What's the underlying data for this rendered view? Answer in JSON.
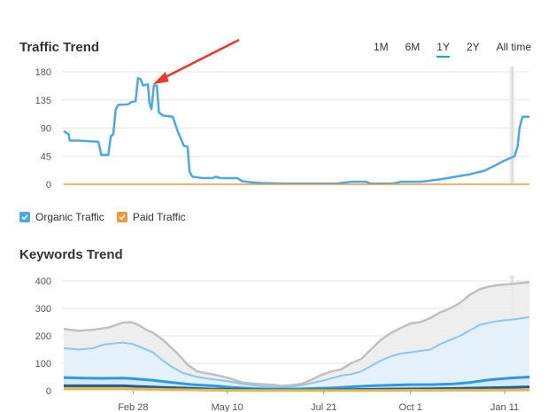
{
  "range_tabs": [
    "1M",
    "6M",
    "1Y",
    "2Y",
    "All time"
  ],
  "active_range": "1Y",
  "colors": {
    "organic": "#4aa8e8",
    "paid": "#f0983a",
    "arrow": "#e8392b",
    "grid": "#e6e6e6",
    "highlight": "#d6d6d6"
  },
  "legend": {
    "organic": "Organic Traffic",
    "paid": "Paid Traffic"
  },
  "chart_data": [
    {
      "type": "line",
      "title": "Traffic Trend",
      "xlabel": "",
      "ylabel": "",
      "ylim": [
        0,
        180
      ],
      "yticks": [
        0,
        45,
        90,
        135,
        180
      ],
      "grid": true,
      "series": [
        {
          "name": "Organic Traffic",
          "color": "#4aa8e8",
          "points": [
            [
              0,
              85
            ],
            [
              1,
              80
            ],
            [
              1.2,
              70
            ],
            [
              3,
              70
            ],
            [
              7,
              68
            ],
            [
              7.6,
              47
            ],
            [
              9,
              47
            ],
            [
              9.5,
              77
            ],
            [
              10,
              80
            ],
            [
              10.5,
              120
            ],
            [
              11,
              127
            ],
            [
              13,
              128
            ],
            [
              13.5,
              131
            ],
            [
              14.5,
              133
            ],
            [
              15,
              170
            ],
            [
              15.5,
              168
            ],
            [
              16,
              158
            ],
            [
              17,
              160
            ],
            [
              17.3,
              130
            ],
            [
              17.7,
              120
            ],
            [
              18.2,
              158
            ],
            [
              18.8,
              158
            ],
            [
              19.2,
              115
            ],
            [
              20,
              110
            ],
            [
              22,
              108
            ],
            [
              23,
              85
            ],
            [
              23.8,
              70
            ],
            [
              24.2,
              62
            ],
            [
              25,
              60
            ],
            [
              25.4,
              20
            ],
            [
              26,
              12
            ],
            [
              28,
              10
            ],
            [
              30,
              10
            ],
            [
              30.8,
              12
            ],
            [
              31.5,
              10
            ],
            [
              35,
              10
            ],
            [
              36,
              5
            ],
            [
              38,
              3
            ],
            [
              40,
              2
            ],
            [
              45,
              1
            ],
            [
              55,
              1
            ],
            [
              56,
              2
            ],
            [
              58,
              4
            ],
            [
              61,
              4
            ],
            [
              62,
              1
            ],
            [
              66,
              1
            ],
            [
              67,
              2
            ],
            [
              68,
              4
            ],
            [
              72,
              4
            ],
            [
              73,
              5
            ],
            [
              76,
              8
            ],
            [
              79,
              12
            ],
            [
              82,
              16
            ],
            [
              85,
              22
            ],
            [
              87,
              30
            ],
            [
              89,
              38
            ],
            [
              91,
              45
            ],
            [
              91.6,
              60
            ],
            [
              92,
              90
            ],
            [
              92.6,
              108
            ],
            [
              94,
              108
            ]
          ]
        },
        {
          "name": "Paid Traffic",
          "color": "#f0983a",
          "points": [
            [
              0,
              0
            ],
            [
              94,
              0
            ]
          ]
        }
      ],
      "highlight_x": 90.5,
      "annotation": {
        "type": "arrow",
        "target": [
          18,
          160
        ]
      }
    },
    {
      "type": "area",
      "title": "Keywords Trend",
      "xlabel": "",
      "ylabel": "",
      "ylim": [
        0,
        400
      ],
      "yticks": [
        0,
        100,
        200,
        300,
        400
      ],
      "xticks": [
        "Feb 28",
        "May 10",
        "Jul 21",
        "Oct 1",
        "Jan 11"
      ],
      "grid": true,
      "series": [
        {
          "color": "#c0c0c0",
          "fill": "#ececec",
          "points": [
            [
              0,
              225
            ],
            [
              3,
              218
            ],
            [
              6,
              222
            ],
            [
              9,
              230
            ],
            [
              12,
              248
            ],
            [
              13.5,
              250
            ],
            [
              15,
              240
            ],
            [
              17,
              218
            ],
            [
              18,
              212
            ],
            [
              20,
              185
            ],
            [
              23,
              135
            ],
            [
              25,
              95
            ],
            [
              27,
              70
            ],
            [
              30,
              60
            ],
            [
              33,
              48
            ],
            [
              36,
              30
            ],
            [
              39,
              25
            ],
            [
              42,
              22
            ],
            [
              44,
              18
            ],
            [
              46,
              20
            ],
            [
              48,
              25
            ],
            [
              50,
              40
            ],
            [
              52,
              58
            ],
            [
              54,
              70
            ],
            [
              56,
              78
            ],
            [
              58,
              100
            ],
            [
              60,
              115
            ],
            [
              62,
              150
            ],
            [
              64,
              185
            ],
            [
              66,
              210
            ],
            [
              68,
              228
            ],
            [
              70,
              245
            ],
            [
              72,
              250
            ],
            [
              74,
              265
            ],
            [
              76,
              285
            ],
            [
              78,
              300
            ],
            [
              80,
              320
            ],
            [
              82,
              350
            ],
            [
              84,
              370
            ],
            [
              86,
              380
            ],
            [
              88,
              385
            ],
            [
              90,
              388
            ],
            [
              92,
              392
            ],
            [
              94,
              395
            ]
          ]
        },
        {
          "color": "#8fc6ec",
          "fill": "#e2f0fb",
          "points": [
            [
              0,
              155
            ],
            [
              3,
              150
            ],
            [
              6,
              155
            ],
            [
              8,
              168
            ],
            [
              10,
              172
            ],
            [
              12,
              175
            ],
            [
              14,
              170
            ],
            [
              16,
              155
            ],
            [
              18,
              140
            ],
            [
              20,
              110
            ],
            [
              22,
              85
            ],
            [
              24,
              65
            ],
            [
              27,
              50
            ],
            [
              30,
              42
            ],
            [
              33,
              35
            ],
            [
              36,
              25
            ],
            [
              39,
              18
            ],
            [
              42,
              14
            ],
            [
              44,
              12
            ],
            [
              46,
              15
            ],
            [
              48,
              20
            ],
            [
              50,
              28
            ],
            [
              52,
              35
            ],
            [
              54,
              45
            ],
            [
              56,
              55
            ],
            [
              58,
              60
            ],
            [
              60,
              70
            ],
            [
              62,
              90
            ],
            [
              64,
              110
            ],
            [
              66,
              125
            ],
            [
              68,
              135
            ],
            [
              70,
              140
            ],
            [
              72,
              145
            ],
            [
              74,
              150
            ],
            [
              76,
              170
            ],
            [
              78,
              185
            ],
            [
              80,
              200
            ],
            [
              82,
              220
            ],
            [
              84,
              240
            ],
            [
              86,
              248
            ],
            [
              88,
              255
            ],
            [
              90,
              258
            ],
            [
              92,
              263
            ],
            [
              94,
              268
            ]
          ]
        },
        {
          "color": "#2b9ae0",
          "fill": "#d2e7f7",
          "points": [
            [
              0,
              48
            ],
            [
              4,
              46
            ],
            [
              8,
              45
            ],
            [
              12,
              46
            ],
            [
              14,
              44
            ],
            [
              18,
              38
            ],
            [
              22,
              30
            ],
            [
              26,
              22
            ],
            [
              30,
              18
            ],
            [
              34,
              12
            ],
            [
              38,
              8
            ],
            [
              42,
              6
            ],
            [
              46,
              6
            ],
            [
              50,
              8
            ],
            [
              54,
              10
            ],
            [
              58,
              14
            ],
            [
              62,
              18
            ],
            [
              66,
              20
            ],
            [
              70,
              22
            ],
            [
              74,
              22
            ],
            [
              78,
              24
            ],
            [
              82,
              30
            ],
            [
              86,
              40
            ],
            [
              90,
              46
            ],
            [
              94,
              50
            ]
          ]
        },
        {
          "color": "#1f5b94",
          "fill": "#c9dff2",
          "points": [
            [
              0,
              18
            ],
            [
              6,
              18
            ],
            [
              12,
              18
            ],
            [
              16,
              15
            ],
            [
              20,
              12
            ],
            [
              24,
              10
            ],
            [
              30,
              6
            ],
            [
              36,
              4
            ],
            [
              42,
              2
            ],
            [
              48,
              2
            ],
            [
              54,
              3
            ],
            [
              60,
              5
            ],
            [
              66,
              6
            ],
            [
              72,
              7
            ],
            [
              78,
              8
            ],
            [
              84,
              10
            ],
            [
              90,
              12
            ],
            [
              94,
              14
            ]
          ]
        },
        {
          "color": "#e3b54a",
          "fill": "#f6e6b8",
          "points": [
            [
              0,
              8
            ],
            [
              10,
              8
            ],
            [
              16,
              6
            ],
            [
              22,
              4
            ],
            [
              30,
              2
            ],
            [
              40,
              1
            ],
            [
              60,
              1
            ],
            [
              80,
              2
            ],
            [
              94,
              3
            ]
          ]
        }
      ],
      "highlight_x": 90.5
    }
  ]
}
